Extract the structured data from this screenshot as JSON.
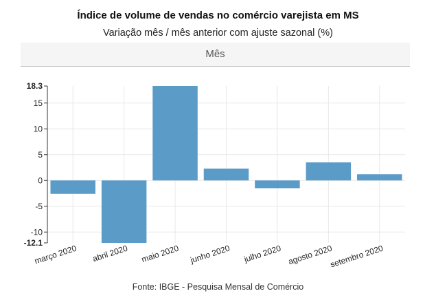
{
  "header": {
    "title": "Índice de volume de vendas no comércio varejista em MS",
    "subtitle": "Variação mês / mês anterior com ajuste sazonal (%)"
  },
  "tab": {
    "label": "Mês"
  },
  "footer": {
    "source": "Fonte: IBGE - Pesquisa Mensal de Comércio"
  },
  "colors": {
    "bar": "#5b9bc8",
    "grid": "#e8e8e8",
    "axis": "#333333"
  },
  "chart_data": {
    "type": "bar",
    "categories": [
      "março 2020",
      "abril 2020",
      "maio 2020",
      "junho 2020",
      "julho 2020",
      "agosto 2020",
      "setembro 2020"
    ],
    "values": [
      -2.6,
      -12.1,
      18.3,
      2.3,
      -1.5,
      3.5,
      1.2
    ],
    "ylim": [
      -12.1,
      18.3
    ],
    "yticks": [
      -10,
      -5,
      0,
      5,
      10,
      15
    ],
    "ytick_labels": [
      "-10",
      "-5",
      "0",
      "5",
      "10",
      "15"
    ],
    "ymax_label": "18.3",
    "ymin_label": "-12.1",
    "grid": true,
    "legend": "none"
  }
}
